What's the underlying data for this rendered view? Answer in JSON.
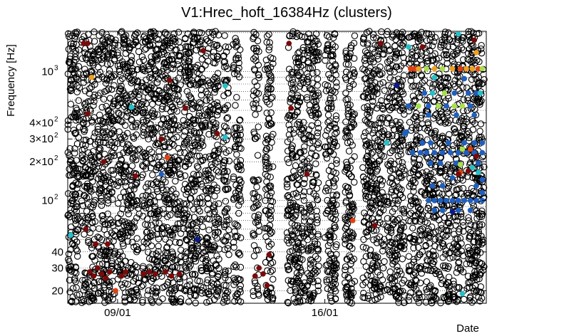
{
  "chart_data": {
    "type": "scatter",
    "title": "V1:Hrec_hoft_16384Hz (clusters)",
    "xlabel": "Date",
    "ylabel": "Frequency [Hz]",
    "y_scale": "log",
    "ylim": [
      16,
      2048
    ],
    "xlim": [
      0,
      21
    ],
    "x_ticks": [
      {
        "value": 2.5,
        "label": "09/01"
      },
      {
        "value": 12.9,
        "label": "16/01"
      }
    ],
    "y_ticks": [
      {
        "value": 20,
        "label": "20"
      },
      {
        "value": 30,
        "label": "30"
      },
      {
        "value": 40,
        "label": "40"
      },
      {
        "value": 100,
        "label": "10",
        "exp": "2"
      },
      {
        "value": 200,
        "label": "2×10",
        "exp": "2"
      },
      {
        "value": 300,
        "label": "3×10",
        "exp": "2"
      },
      {
        "value": 400,
        "label": "4×10",
        "exp": "2"
      },
      {
        "value": 1000,
        "label": "10",
        "exp": "3"
      }
    ],
    "minor_gridlines_y": [
      20,
      30,
      40,
      50,
      60,
      70,
      80,
      90,
      100,
      200,
      300,
      400,
      500,
      600,
      700,
      800,
      900,
      1000,
      2000
    ],
    "grid": true,
    "colormap": [
      "#0a1a8c",
      "#1f5fbf",
      "#25c0c8",
      "#a8e04a",
      "#f0a020",
      "#e04010",
      "#7a0a0a"
    ],
    "background_columns": [
      [
        0.0,
        0.6
      ],
      [
        0.7,
        1.4
      ],
      [
        1.5,
        2.4
      ],
      [
        2.5,
        3.6
      ],
      [
        3.7,
        4.6
      ],
      [
        4.7,
        5.7
      ],
      [
        5.8,
        6.8
      ],
      [
        6.9,
        7.6
      ],
      [
        7.8,
        8.1
      ],
      [
        8.3,
        8.7
      ],
      [
        9.3,
        9.6
      ],
      [
        9.9,
        10.3
      ],
      [
        11.0,
        11.9
      ],
      [
        12.0,
        12.6
      ],
      [
        12.9,
        13.5
      ],
      [
        13.9,
        14.4
      ],
      [
        14.8,
        15.9
      ],
      [
        16.0,
        16.9
      ],
      [
        17.1,
        17.8
      ],
      [
        17.9,
        18.5
      ],
      [
        18.6,
        19.2
      ],
      [
        19.3,
        19.9
      ],
      [
        20.0,
        20.9
      ]
    ],
    "column_gaps": [
      [
        0.5,
        1.2,
        30,
        45
      ],
      [
        3.0,
        3.5,
        70,
        90
      ],
      [
        8.3,
        8.7,
        400,
        900
      ],
      [
        9.3,
        9.6,
        150,
        300
      ],
      [
        11.0,
        11.5,
        1200,
        1800
      ],
      [
        12.9,
        13.2,
        18,
        22
      ],
      [
        15.0,
        15.5,
        40,
        50
      ]
    ],
    "points": [
      {
        "x": 0.15,
        "y": 54,
        "c": "#25c0c8"
      },
      {
        "x": 0.8,
        "y": 1650,
        "c": "#7a0a0a"
      },
      {
        "x": 1.0,
        "y": 1650,
        "c": "#7a0a0a"
      },
      {
        "x": 1.2,
        "y": 900,
        "c": "#f0a020"
      },
      {
        "x": 1.0,
        "y": 470,
        "c": "#7a0a0a"
      },
      {
        "x": 3.2,
        "y": 530,
        "c": "#25c0c8"
      },
      {
        "x": 5.1,
        "y": 855,
        "c": "#7a0a0a"
      },
      {
        "x": 5.9,
        "y": 520,
        "c": "#7a0a0a"
      },
      {
        "x": 6.8,
        "y": 1450,
        "c": "#7a0a0a"
      },
      {
        "x": 7.5,
        "y": 330,
        "c": "#7a0a0a"
      },
      {
        "x": 7.9,
        "y": 775,
        "c": "#25c0c8"
      },
      {
        "x": 7.9,
        "y": 310,
        "c": "#25c0c8"
      },
      {
        "x": 1.8,
        "y": 200,
        "c": "#7a0a0a"
      },
      {
        "x": 3.4,
        "y": 155,
        "c": "#7a0a0a"
      },
      {
        "x": 4.7,
        "y": 300,
        "c": "#7a0a0a"
      },
      {
        "x": 5.0,
        "y": 215,
        "c": "#e04010"
      },
      {
        "x": 4.7,
        "y": 160,
        "c": "#1f5fbf"
      },
      {
        "x": 6.5,
        "y": 50,
        "c": "#0a1a8c"
      },
      {
        "x": 0.9,
        "y": 60,
        "c": "#7a0a0a"
      },
      {
        "x": 1.4,
        "y": 46,
        "c": "#7a0a0a"
      },
      {
        "x": 2.0,
        "y": 46,
        "c": "#7a0a0a"
      },
      {
        "x": 1.1,
        "y": 28,
        "c": "#7a0a0a"
      },
      {
        "x": 1.3,
        "y": 26,
        "c": "#7a0a0a"
      },
      {
        "x": 1.5,
        "y": 30,
        "c": "#7a0a0a"
      },
      {
        "x": 1.7,
        "y": 27,
        "c": "#7a0a0a"
      },
      {
        "x": 1.9,
        "y": 25,
        "c": "#7a0a0a"
      },
      {
        "x": 2.1,
        "y": 28,
        "c": "#7a0a0a"
      },
      {
        "x": 2.4,
        "y": 20,
        "c": "#e04010"
      },
      {
        "x": 2.7,
        "y": 26,
        "c": "#7a0a0a"
      },
      {
        "x": 2.9,
        "y": 28,
        "c": "#7a0a0a"
      },
      {
        "x": 3.8,
        "y": 27,
        "c": "#7a0a0a"
      },
      {
        "x": 4.1,
        "y": 28,
        "c": "#7a0a0a"
      },
      {
        "x": 4.4,
        "y": 27,
        "c": "#7a0a0a"
      },
      {
        "x": 4.9,
        "y": 28,
        "c": "#7a0a0a"
      },
      {
        "x": 5.2,
        "y": 26,
        "c": "#7a0a0a"
      },
      {
        "x": 5.6,
        "y": 27,
        "c": "#7a0a0a"
      },
      {
        "x": 10.1,
        "y": 38,
        "c": "#7a0a0a"
      },
      {
        "x": 9.6,
        "y": 30,
        "c": "#7a0a0a"
      },
      {
        "x": 9.8,
        "y": 27,
        "c": "#7a0a0a"
      },
      {
        "x": 9.4,
        "y": 26,
        "c": "#7a0a0a"
      },
      {
        "x": 10.0,
        "y": 22,
        "c": "#7a0a0a"
      },
      {
        "x": 11.1,
        "y": 1650,
        "c": "#7a0a0a"
      },
      {
        "x": 11.2,
        "y": 520,
        "c": "#7a0a0a"
      },
      {
        "x": 12.0,
        "y": 160,
        "c": "#7a0a0a"
      },
      {
        "x": 14.3,
        "y": 70,
        "c": "#e04010"
      },
      {
        "x": 15.4,
        "y": 64,
        "c": "#7a0a0a"
      },
      {
        "x": 15.7,
        "y": 1650,
        "c": "#7a0a0a"
      },
      {
        "x": 16.0,
        "y": 280,
        "c": "#25c0c8"
      },
      {
        "x": 16.5,
        "y": 780,
        "c": "#0a1a8c"
      },
      {
        "x": 16.9,
        "y": 330,
        "c": "#1f5fbf"
      },
      {
        "x": 17.1,
        "y": 1550,
        "c": "#25c0c8"
      },
      {
        "x": 17.2,
        "y": 1050,
        "c": "#e04010"
      },
      {
        "x": 17.4,
        "y": 1050,
        "c": "#e04010"
      },
      {
        "x": 17.6,
        "y": 1050,
        "c": "#f0a020"
      },
      {
        "x": 18.0,
        "y": 1050,
        "c": "#a8e04a"
      },
      {
        "x": 18.4,
        "y": 1050,
        "c": "#f0a020"
      },
      {
        "x": 18.8,
        "y": 1050,
        "c": "#a8e04a"
      },
      {
        "x": 19.3,
        "y": 1050,
        "c": "#f0a020"
      },
      {
        "x": 19.7,
        "y": 1050,
        "c": "#e04010"
      },
      {
        "x": 20.0,
        "y": 1050,
        "c": "#f0a020"
      },
      {
        "x": 20.3,
        "y": 1050,
        "c": "#f0a020"
      },
      {
        "x": 20.6,
        "y": 1050,
        "c": "#e04010"
      },
      {
        "x": 20.8,
        "y": 1050,
        "c": "#a8e04a"
      },
      {
        "x": 20.5,
        "y": 1400,
        "c": "#f0a020"
      },
      {
        "x": 19.6,
        "y": 1950,
        "c": "#25c0c8"
      },
      {
        "x": 20.4,
        "y": 1750,
        "c": "#7a0a0a"
      },
      {
        "x": 17.8,
        "y": 1550,
        "c": "#7a0a0a"
      },
      {
        "x": 18.4,
        "y": 900,
        "c": "#25c0c8"
      },
      {
        "x": 19.9,
        "y": 880,
        "c": "#1f5fbf"
      },
      {
        "x": 17.1,
        "y": 540,
        "c": "#1f5fbf"
      },
      {
        "x": 17.6,
        "y": 540,
        "c": "#a8e04a"
      },
      {
        "x": 17.9,
        "y": 680,
        "c": "#1f5fbf"
      },
      {
        "x": 18.1,
        "y": 540,
        "c": "#1f5fbf"
      },
      {
        "x": 18.6,
        "y": 540,
        "c": "#a8e04a"
      },
      {
        "x": 19.0,
        "y": 540,
        "c": "#1f5fbf"
      },
      {
        "x": 19.4,
        "y": 540,
        "c": "#a8e04a"
      },
      {
        "x": 19.8,
        "y": 540,
        "c": "#a8e04a"
      },
      {
        "x": 20.2,
        "y": 540,
        "c": "#1f5fbf"
      },
      {
        "x": 18.3,
        "y": 680,
        "c": "#25c0c8"
      },
      {
        "x": 18.9,
        "y": 680,
        "c": "#a8e04a"
      },
      {
        "x": 19.4,
        "y": 680,
        "c": "#1f5fbf"
      },
      {
        "x": 20.1,
        "y": 680,
        "c": "#1f5fbf"
      },
      {
        "x": 20.5,
        "y": 680,
        "c": "#1f5fbf"
      },
      {
        "x": 20.7,
        "y": 680,
        "c": "#25c0c8"
      },
      {
        "x": 18.1,
        "y": 460,
        "c": "#1f5fbf"
      },
      {
        "x": 19.5,
        "y": 460,
        "c": "#1f5fbf"
      },
      {
        "x": 20.4,
        "y": 460,
        "c": "#1f5fbf"
      },
      {
        "x": 17.0,
        "y": 340,
        "c": "#1f5fbf"
      },
      {
        "x": 17.8,
        "y": 280,
        "c": "#1f5fbf"
      },
      {
        "x": 18.2,
        "y": 280,
        "c": "#1f5fbf"
      },
      {
        "x": 19.1,
        "y": 280,
        "c": "#1f5fbf"
      },
      {
        "x": 19.9,
        "y": 280,
        "c": "#1f5fbf"
      },
      {
        "x": 20.4,
        "y": 280,
        "c": "#1f5fbf"
      },
      {
        "x": 20.8,
        "y": 280,
        "c": "#1f5fbf"
      },
      {
        "x": 17.3,
        "y": 235,
        "c": "#1f5fbf"
      },
      {
        "x": 17.7,
        "y": 235,
        "c": "#1f5fbf"
      },
      {
        "x": 18.0,
        "y": 235,
        "c": "#1f5fbf"
      },
      {
        "x": 18.4,
        "y": 235,
        "c": "#1f5fbf"
      },
      {
        "x": 18.8,
        "y": 235,
        "c": "#1f5fbf"
      },
      {
        "x": 19.2,
        "y": 235,
        "c": "#1f5fbf"
      },
      {
        "x": 19.6,
        "y": 235,
        "c": "#1f5fbf"
      },
      {
        "x": 20.0,
        "y": 235,
        "c": "#1f5fbf"
      },
      {
        "x": 20.4,
        "y": 235,
        "c": "#1f5fbf"
      },
      {
        "x": 20.8,
        "y": 235,
        "c": "#1f5fbf"
      },
      {
        "x": 19.8,
        "y": 250,
        "c": "#a8e04a"
      },
      {
        "x": 20.2,
        "y": 250,
        "c": "#e04010"
      },
      {
        "x": 20.5,
        "y": 220,
        "c": "#7a0a0a"
      },
      {
        "x": 18.2,
        "y": 195,
        "c": "#1f5fbf"
      },
      {
        "x": 18.7,
        "y": 195,
        "c": "#1f5fbf"
      },
      {
        "x": 19.5,
        "y": 195,
        "c": "#1f5fbf"
      },
      {
        "x": 19.7,
        "y": 190,
        "c": "#a8e04a"
      },
      {
        "x": 20.6,
        "y": 195,
        "c": "#1f5fbf"
      },
      {
        "x": 20.3,
        "y": 180,
        "c": "#25c0c8"
      },
      {
        "x": 20.1,
        "y": 170,
        "c": "#7a0a0a"
      },
      {
        "x": 19.7,
        "y": 165,
        "c": "#e04010"
      },
      {
        "x": 20.6,
        "y": 165,
        "c": "#25c0c8"
      },
      {
        "x": 19.6,
        "y": 160,
        "c": "#7a0a0a"
      },
      {
        "x": 19.3,
        "y": 150,
        "c": "#1f5fbf"
      },
      {
        "x": 20.8,
        "y": 145,
        "c": "#1f5fbf"
      },
      {
        "x": 18.3,
        "y": 130,
        "c": "#1f5fbf"
      },
      {
        "x": 18.8,
        "y": 130,
        "c": "#1f5fbf"
      },
      {
        "x": 20.5,
        "y": 130,
        "c": "#1f5fbf"
      },
      {
        "x": 20.8,
        "y": 115,
        "c": "#1f5fbf"
      },
      {
        "x": 18.1,
        "y": 100,
        "c": "#1f5fbf"
      },
      {
        "x": 18.4,
        "y": 100,
        "c": "#1f5fbf"
      },
      {
        "x": 18.7,
        "y": 100,
        "c": "#1f5fbf"
      },
      {
        "x": 19.0,
        "y": 100,
        "c": "#1f5fbf"
      },
      {
        "x": 19.3,
        "y": 100,
        "c": "#1f5fbf"
      },
      {
        "x": 19.6,
        "y": 100,
        "c": "#1f5fbf"
      },
      {
        "x": 19.9,
        "y": 100,
        "c": "#1f5fbf"
      },
      {
        "x": 20.2,
        "y": 100,
        "c": "#1f5fbf"
      },
      {
        "x": 20.5,
        "y": 100,
        "c": "#1f5fbf"
      },
      {
        "x": 20.8,
        "y": 100,
        "c": "#1f5fbf"
      },
      {
        "x": 18.4,
        "y": 84,
        "c": "#1f5fbf"
      },
      {
        "x": 18.8,
        "y": 84,
        "c": "#1f5fbf"
      },
      {
        "x": 19.6,
        "y": 84,
        "c": "#1f5fbf"
      },
      {
        "x": 20.2,
        "y": 84,
        "c": "#1f5fbf"
      },
      {
        "x": 19.3,
        "y": 82,
        "c": "#0a1a8c"
      },
      {
        "x": 19.8,
        "y": 19,
        "c": "#25c0c8"
      }
    ]
  }
}
